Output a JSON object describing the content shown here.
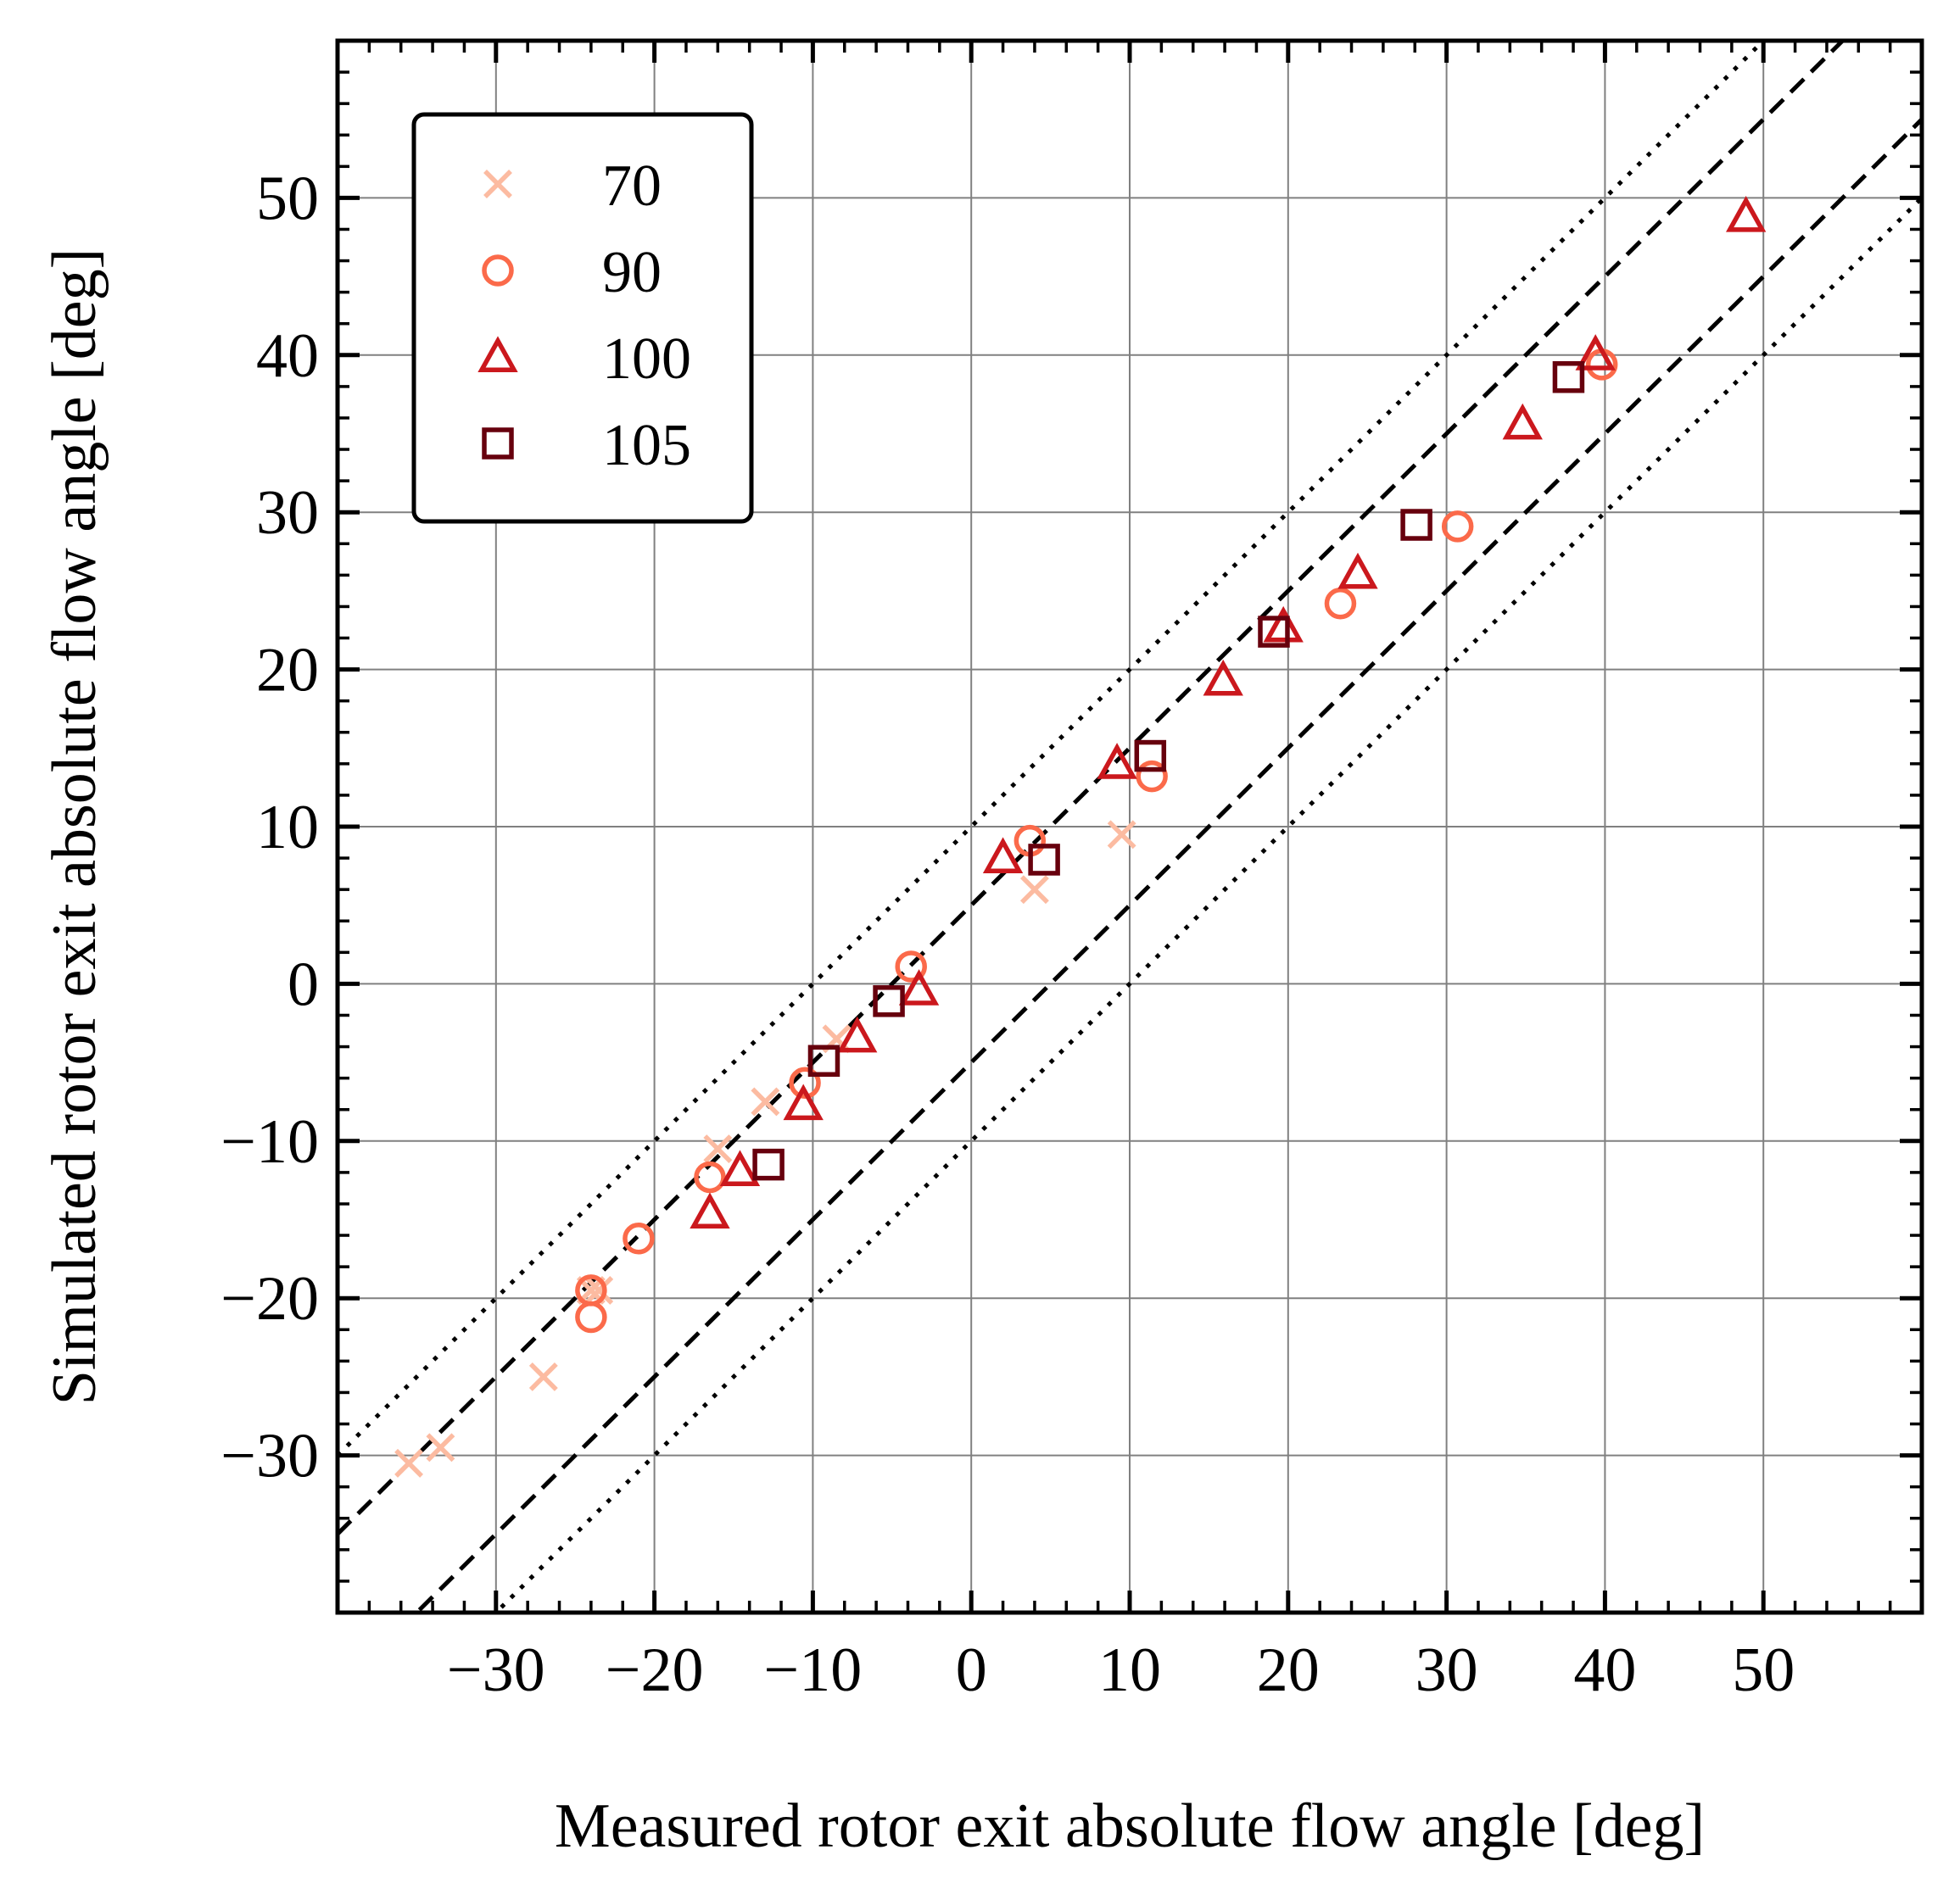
{
  "chart_data": {
    "type": "scatter",
    "title": "",
    "xlabel": "Measured rotor exit absolute flow angle [deg]",
    "ylabel": "Simulated rotor exit absolute flow angle [deg]",
    "xlim": [
      -40,
      60
    ],
    "ylim": [
      -40,
      60
    ],
    "xticks": [
      -30,
      -20,
      -10,
      0,
      10,
      20,
      30,
      40,
      50
    ],
    "yticks": [
      -30,
      -20,
      -10,
      0,
      10,
      20,
      30,
      40,
      50
    ],
    "xtick_labels": [
      "−30",
      "−20",
      "−10",
      "0",
      "10",
      "20",
      "30",
      "40",
      "50"
    ],
    "ytick_labels": [
      "−30",
      "−20",
      "−10",
      "0",
      "10",
      "20",
      "30",
      "40",
      "50"
    ],
    "grid": true,
    "legend_position": "top-left",
    "reference_lines": [
      {
        "style": "dashed",
        "offset": 5
      },
      {
        "style": "dashed",
        "offset": -5
      },
      {
        "style": "dotted",
        "offset": 10
      },
      {
        "style": "dotted",
        "offset": -10
      }
    ],
    "series": [
      {
        "name": "70",
        "marker": "x",
        "color": "#fcbba1",
        "points": [
          [
            -35.5,
            -30.5
          ],
          [
            -33.5,
            -29.5
          ],
          [
            -27,
            -25
          ],
          [
            -23.5,
            -19.5
          ],
          [
            -16,
            -10.5
          ],
          [
            -13,
            -7.5
          ],
          [
            -8.5,
            -3.5
          ],
          [
            4,
            6
          ],
          [
            9.5,
            9.5
          ],
          [
            -24,
            -19.5
          ]
        ]
      },
      {
        "name": "90",
        "marker": "circle",
        "color": "#fb6a4a",
        "points": [
          [
            -24,
            -19.5
          ],
          [
            -24,
            -21.2
          ],
          [
            -21,
            -16.2
          ],
          [
            -16.5,
            -12.3
          ],
          [
            -10.5,
            -6.3
          ],
          [
            -3.8,
            1.1
          ],
          [
            3.7,
            9.1
          ],
          [
            11.4,
            13.2
          ],
          [
            23.3,
            24.2
          ],
          [
            30.7,
            29.1
          ],
          [
            39.8,
            39.4
          ]
        ]
      },
      {
        "name": "100",
        "marker": "triangle",
        "color": "#cb181d",
        "points": [
          [
            -16.5,
            -14.6
          ],
          [
            -14.6,
            -11.9
          ],
          [
            -10.6,
            -7.7
          ],
          [
            -7.2,
            -3.4
          ],
          [
            -3.3,
            -0.4
          ],
          [
            2,
            8
          ],
          [
            9.2,
            14
          ],
          [
            15.9,
            19.3
          ],
          [
            19.7,
            22.7
          ],
          [
            24.4,
            26.1
          ],
          [
            34.8,
            35.6
          ],
          [
            39.4,
            40
          ],
          [
            48.9,
            48.8
          ]
        ]
      },
      {
        "name": "105",
        "marker": "square",
        "color": "#67000d",
        "points": [
          [
            -12.8,
            -11.5
          ],
          [
            -9.3,
            -4.9
          ],
          [
            -5.2,
            -1.1
          ],
          [
            4.6,
            7.9
          ],
          [
            11.3,
            14.5
          ],
          [
            19.1,
            22.4
          ],
          [
            28.1,
            29.2
          ],
          [
            37.7,
            38.6
          ]
        ]
      }
    ]
  }
}
